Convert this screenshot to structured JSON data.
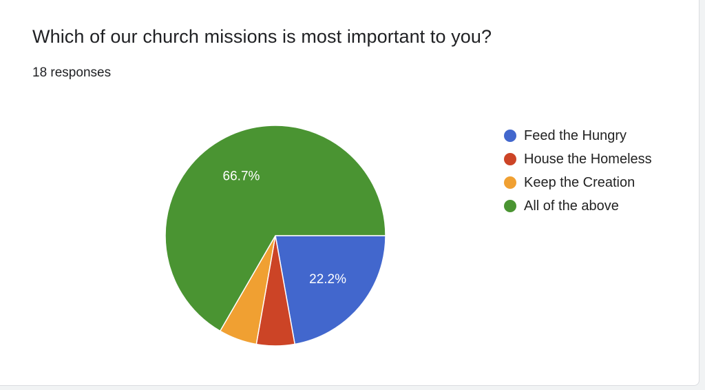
{
  "question": "Which of our church missions is most important to you?",
  "responses": "18 responses",
  "chart_data": {
    "type": "pie",
    "title": "Which of our church missions is most important to you?",
    "categories": [
      "Feed the Hungry",
      "House the Homeless",
      "Keep the Creation",
      "All of the above"
    ],
    "values": [
      22.2,
      5.6,
      5.6,
      66.7
    ],
    "data_labels": [
      "22.2%",
      "",
      "",
      "66.7%"
    ],
    "colors": [
      "#4267cd",
      "#cc4426",
      "#f0a032",
      "#4a9432"
    ],
    "legend_position": "right"
  }
}
